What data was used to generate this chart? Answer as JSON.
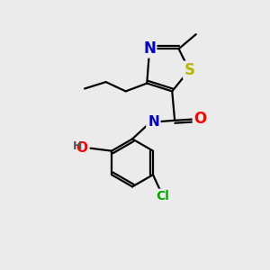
{
  "bg_color": "#ebebeb",
  "atom_colors": {
    "C": "#000000",
    "N": "#0000cc",
    "O": "#ff0000",
    "S": "#b8b800",
    "Cl": "#00aa00",
    "H": "#555555"
  },
  "bond_color": "#000000",
  "bond_lw": 1.6,
  "font_size_N": 12,
  "font_size_S": 12,
  "font_size_O": 12,
  "font_size_Cl": 10,
  "font_size_NH": 11,
  "font_size_HO": 11
}
